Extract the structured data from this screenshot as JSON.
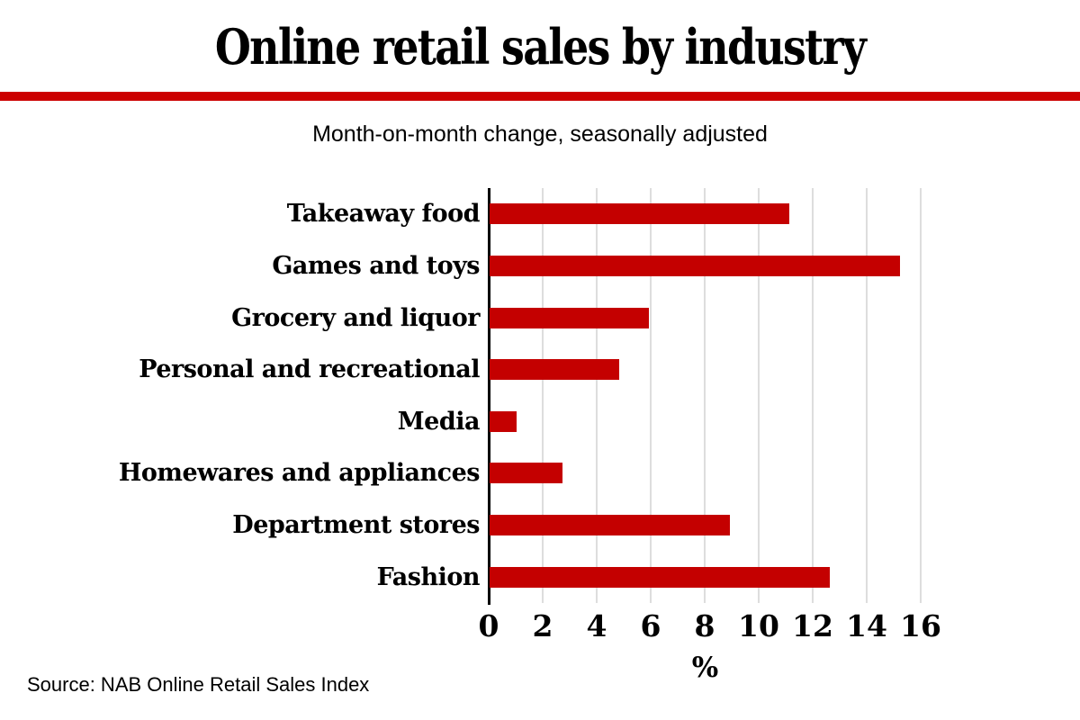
{
  "header": {
    "title": "Online retail sales by industry",
    "subtitle": "Month-on-month change, seasonally adjusted"
  },
  "footer": {
    "source": "Source: NAB Online Retail Sales Index"
  },
  "colors": {
    "bar": "#c40000",
    "rule": "#cc0000",
    "grid": "#dddddd",
    "axis": "#000000"
  },
  "chart_data": {
    "type": "bar",
    "orientation": "horizontal",
    "title": "Online retail sales by industry",
    "subtitle": "Month-on-month change, seasonally adjusted",
    "categories": [
      "Takeaway food",
      "Games and toys",
      "Grocery and liquor",
      "Personal and recreational",
      "Media",
      "Homewares and appliances",
      "Department stores",
      "Fashion"
    ],
    "values": [
      11.1,
      15.2,
      5.9,
      4.8,
      1.0,
      2.7,
      8.9,
      12.6
    ],
    "xlabel": "%",
    "ylabel": "",
    "xlim": [
      0,
      16
    ],
    "xticks": [
      0,
      2,
      4,
      6,
      8,
      10,
      12,
      14,
      16
    ],
    "grid": true,
    "legend": false,
    "bar_color": "#c40000"
  }
}
